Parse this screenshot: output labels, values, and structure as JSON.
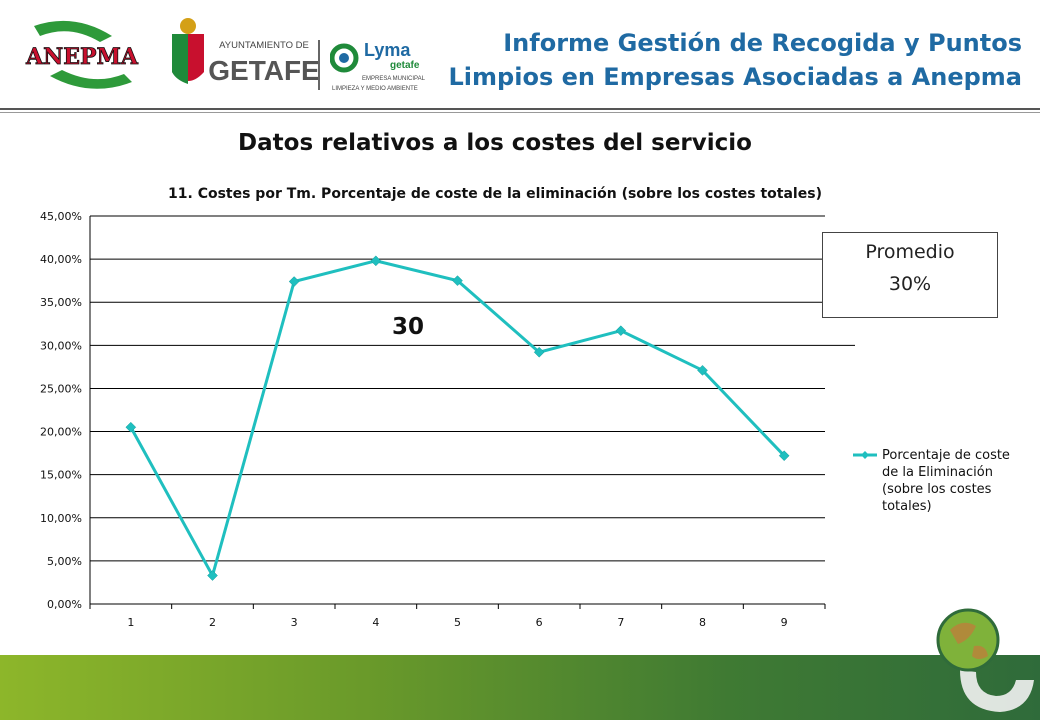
{
  "header": {
    "logo_anepma_text": "ANEPMA",
    "logo_getafe_top": "AYUNTAMIENTO DE",
    "logo_getafe_main": "GETAFE",
    "logo_lyma_main": "Lyma",
    "logo_lyma_sub": "getafe",
    "logo_lyma_line1": "EMPRESA MUNICIPAL",
    "logo_lyma_line2": "LIMPIEZA Y MEDIO AMBIENTE",
    "title_line1": "Informe Gestión de Recogida y Puntos",
    "title_line2": "Limpios en Empresas Asociadas a Anepma"
  },
  "section_title": "Datos relativos a los costes del servicio",
  "promedio": {
    "label": "Promedio",
    "value": "30%"
  },
  "big_label": "30",
  "colors": {
    "series": "#1fbfbf",
    "title": "#1f6aa3",
    "grid": "#000000"
  },
  "chart_data": {
    "type": "line",
    "title": "11. Costes por Tm. Porcentaje de coste de la eliminación (sobre los costes totales)",
    "categories": [
      "1",
      "2",
      "3",
      "4",
      "5",
      "6",
      "7",
      "8",
      "9"
    ],
    "series": [
      {
        "name": "Porcentaje de coste de la Eliminación (sobre los costes totales)",
        "legend_lines": [
          "Porcentaje de coste",
          "de la Eliminación",
          "(sobre los costes",
          "totales)"
        ],
        "values": [
          20.5,
          3.3,
          37.4,
          39.8,
          37.5,
          29.2,
          31.7,
          27.1,
          17.2
        ]
      }
    ],
    "ylim": [
      0,
      45
    ],
    "yticks": [
      "0,00%",
      "5,00%",
      "10,00%",
      "15,00%",
      "20,00%",
      "25,00%",
      "30,00%",
      "35,00%",
      "40,00%",
      "45,00%"
    ],
    "grid": true,
    "legend_position": "right"
  }
}
